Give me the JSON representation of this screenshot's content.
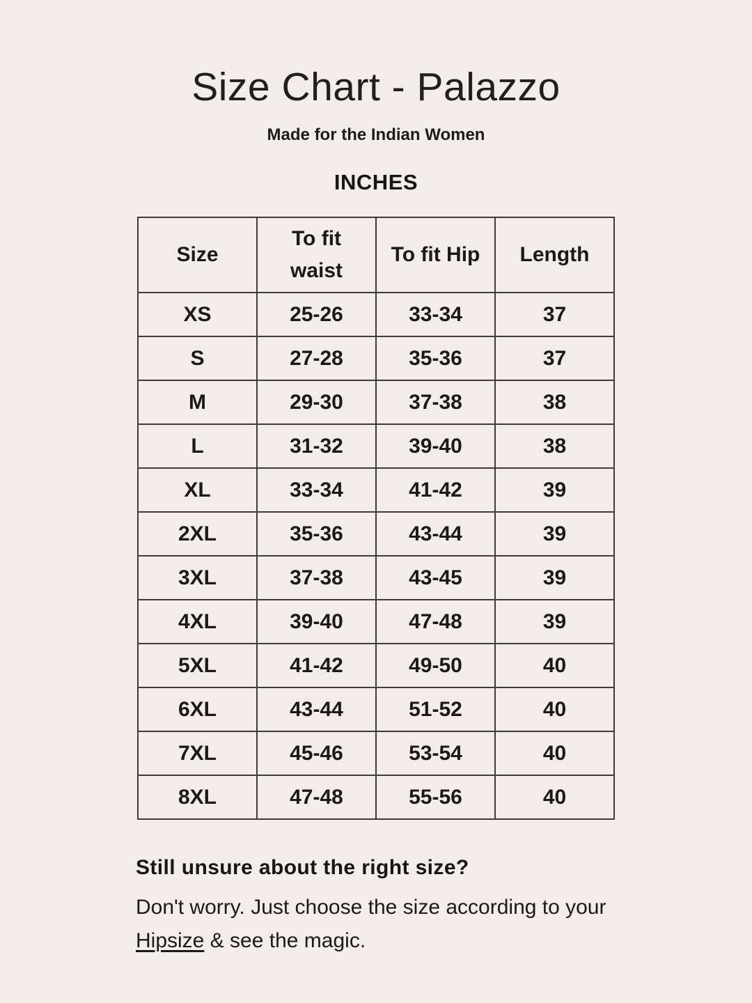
{
  "page": {
    "title": "Size Chart - Palazzo",
    "subtitle": "Made for the Indian Women",
    "unit_label": "INCHES"
  },
  "size_table": {
    "columns": [
      "Size",
      "To fit\nwaist",
      "To fit Hip",
      "Length"
    ],
    "rows": [
      {
        "size": "XS",
        "waist": "25-26",
        "hip": "33-34",
        "length": "37"
      },
      {
        "size": "S",
        "waist": "27-28",
        "hip": "35-36",
        "length": "37"
      },
      {
        "size": "M",
        "waist": "29-30",
        "hip": "37-38",
        "length": "38"
      },
      {
        "size": "L",
        "waist": "31-32",
        "hip": "39-40",
        "length": "38"
      },
      {
        "size": "XL",
        "waist": "33-34",
        "hip": "41-42",
        "length": "39"
      },
      {
        "size": "2XL",
        "waist": "35-36",
        "hip": "43-44",
        "length": "39"
      },
      {
        "size": "3XL",
        "waist": "37-38",
        "hip": "43-45",
        "length": "39"
      },
      {
        "size": "4XL",
        "waist": "39-40",
        "hip": "47-48",
        "length": "39"
      },
      {
        "size": "5XL",
        "waist": "41-42",
        "hip": "49-50",
        "length": "40"
      },
      {
        "size": "6XL",
        "waist": "43-44",
        "hip": "51-52",
        "length": "40"
      },
      {
        "size": "7XL",
        "waist": "45-46",
        "hip": "53-54",
        "length": "40"
      },
      {
        "size": "8XL",
        "waist": "47-48",
        "hip": "55-56",
        "length": "40"
      }
    ]
  },
  "footer": {
    "heading": "Still unsure about the right size?",
    "line1": "Don't worry. Just choose the size according to your",
    "link_text": "Hipsize",
    "line2_rest": " & see the magic."
  },
  "colors": {
    "background": "#f2ede8",
    "text": "#1b1a18",
    "border": "#3e3c38"
  }
}
